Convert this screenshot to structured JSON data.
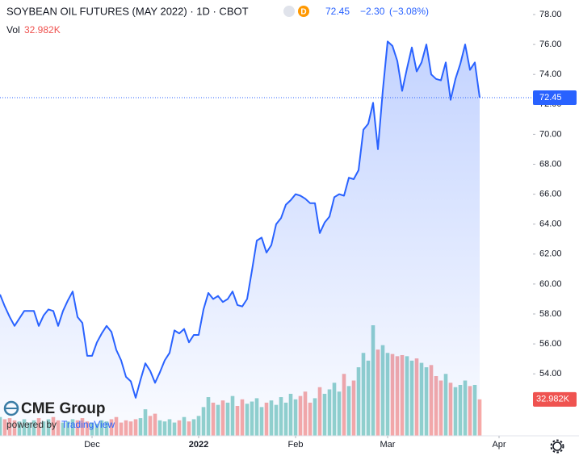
{
  "header": {
    "title": "SOYBEAN OIL FUTURES (MAY 2022) · 1D · CBOT",
    "badge": "D",
    "change": "−2.30",
    "change_pct": "(−3.08%)",
    "vol_label": "Vol",
    "vol_value": "32.982K"
  },
  "logo": {
    "brand": "CME Group",
    "powered_by": "powered by",
    "platform": "TradingView"
  },
  "chart_data": {
    "type": "line",
    "categories": [
      null,
      null,
      null,
      null,
      null,
      null,
      null,
      null,
      null,
      null,
      null,
      null,
      null,
      null,
      null,
      null,
      null,
      null,
      null,
      null,
      null,
      null,
      null,
      null,
      null,
      null,
      null,
      null,
      null,
      null,
      null,
      null,
      null,
      null,
      null,
      null,
      null,
      null,
      null,
      null,
      null,
      null,
      null,
      null,
      null,
      null,
      null,
      null,
      null,
      null,
      null,
      null,
      null,
      null,
      null,
      null,
      null,
      null,
      null,
      null,
      null,
      null,
      null,
      null,
      null,
      null,
      null,
      null,
      null,
      null,
      null,
      null,
      null,
      null,
      null,
      null,
      null,
      null,
      null,
      null,
      null,
      null,
      null,
      null,
      null,
      null,
      null,
      null,
      null,
      null,
      null,
      null,
      null,
      null,
      null,
      null,
      null,
      null,
      null,
      null
    ],
    "values": [
      59.3,
      58.5,
      57.8,
      57.2,
      57.7,
      58.2,
      58.2,
      58.2,
      57.2,
      57.9,
      58.3,
      58.2,
      57.2,
      58.2,
      58.9,
      59.5,
      57.8,
      57.4,
      55.2,
      55.2,
      56.1,
      56.7,
      57.2,
      56.8,
      55.6,
      54.9,
      53.8,
      53.5,
      52.4,
      53.6,
      54.7,
      54.2,
      53.4,
      54.1,
      54.9,
      55.4,
      56.9,
      56.7,
      57.0,
      56.1,
      56.6,
      56.6,
      58.3,
      59.4,
      59.0,
      59.2,
      58.8,
      59.0,
      59.5,
      58.6,
      58.5,
      59.0,
      60.9,
      62.9,
      63.1,
      62.1,
      62.6,
      64.0,
      64.4,
      65.3,
      65.6,
      66.0,
      65.9,
      65.7,
      65.4,
      65.4,
      63.4,
      64.1,
      64.5,
      65.8,
      66.0,
      65.9,
      67.1,
      67.0,
      67.6,
      70.3,
      70.7,
      72.1,
      69.0,
      72.9,
      76.2,
      75.9,
      74.9,
      72.9,
      74.4,
      75.8,
      74.2,
      74.8,
      76.0,
      74.0,
      73.7,
      73.6,
      74.8,
      72.3,
      73.7,
      74.7,
      76.0,
      74.3,
      74.8,
      72.45
    ],
    "volume": [
      17000,
      15000,
      16000,
      14000,
      13000,
      15000,
      12000,
      14000,
      16000,
      13000,
      15000,
      17000,
      14000,
      12000,
      13000,
      15000,
      14000,
      16000,
      13000,
      12000,
      11000,
      14000,
      13000,
      15000,
      17000,
      12000,
      14000,
      13000,
      15000,
      16000,
      24000,
      18000,
      20000,
      14000,
      13000,
      15000,
      12000,
      14000,
      17000,
      13000,
      15000,
      18000,
      26000,
      35000,
      30000,
      28000,
      32000,
      30000,
      36000,
      27000,
      33000,
      29000,
      31000,
      34000,
      26000,
      30000,
      32000,
      28000,
      35000,
      30000,
      38000,
      33000,
      36000,
      40000,
      30000,
      34000,
      44000,
      38000,
      42000,
      48000,
      40000,
      56000,
      45000,
      50000,
      62000,
      75000,
      68000,
      100000,
      78000,
      82000,
      75000,
      74000,
      72000,
      73000,
      72000,
      68000,
      70000,
      66000,
      62000,
      64000,
      54000,
      50000,
      56000,
      48000,
      44000,
      46000,
      50000,
      45000,
      46000,
      32982
    ],
    "color": "#2962ff",
    "up_color": "rgba(38,166,154,0.5)",
    "down_color": "rgba(239,83,80,0.5)",
    "ylim": [
      49.86,
      78.97
    ],
    "yticks": [
      {
        "value": 78,
        "label": "78.00"
      },
      {
        "value": 76,
        "label": "76.00"
      },
      {
        "value": 74,
        "label": "74.00"
      },
      {
        "value": 72,
        "label": "72.00"
      },
      {
        "value": 70,
        "label": "70.00"
      },
      {
        "value": 68,
        "label": "68.00"
      },
      {
        "value": 66,
        "label": "66.00"
      },
      {
        "value": 64,
        "label": "64.00"
      },
      {
        "value": 62,
        "label": "62.00"
      },
      {
        "value": 60,
        "label": "60.00"
      },
      {
        "value": 58,
        "label": "58.00"
      },
      {
        "value": 56,
        "label": "56.00"
      },
      {
        "value": 54,
        "label": "54.00"
      }
    ],
    "xticks": [
      {
        "value": 19,
        "label": "Dec"
      },
      {
        "value": 41,
        "label": "2022"
      },
      {
        "value": 61,
        "label": "Feb"
      },
      {
        "value": 80,
        "label": "Mar"
      },
      {
        "value": 103,
        "label": "Apr"
      }
    ],
    "grid": false
  }
}
